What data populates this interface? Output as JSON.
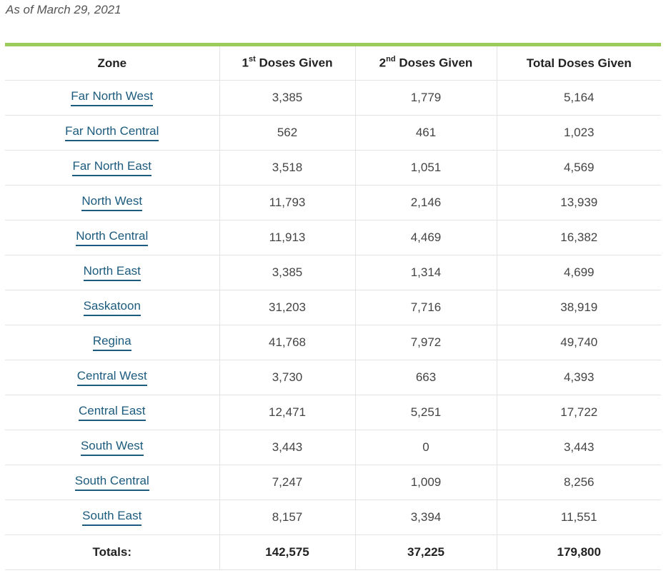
{
  "as_of": "As of March 29, 2021",
  "table": {
    "headers": {
      "zone": "Zone",
      "first_prefix": "1",
      "first_sup": "st",
      "first_suffix": " Doses Given",
      "second_prefix": "2",
      "second_sup": "nd",
      "second_suffix": " Doses Given",
      "total": "Total Doses Given"
    },
    "rows": [
      {
        "zone": "Far North West",
        "first": "3,385",
        "second": "1,779",
        "total": "5,164"
      },
      {
        "zone": "Far North Central",
        "first": "562",
        "second": "461",
        "total": "1,023"
      },
      {
        "zone": "Far North East",
        "first": "3,518",
        "second": "1,051",
        "total": "4,569"
      },
      {
        "zone": "North West",
        "first": "11,793",
        "second": "2,146",
        "total": "13,939"
      },
      {
        "zone": "North Central",
        "first": "11,913",
        "second": "4,469",
        "total": "16,382"
      },
      {
        "zone": "North East",
        "first": "3,385",
        "second": "1,314",
        "total": "4,699"
      },
      {
        "zone": "Saskatoon",
        "first": "31,203",
        "second": "7,716",
        "total": "38,919"
      },
      {
        "zone": "Regina",
        "first": "41,768",
        "second": "7,972",
        "total": "49,740"
      },
      {
        "zone": "Central West",
        "first": "3,730",
        "second": "663",
        "total": "4,393"
      },
      {
        "zone": "Central East",
        "first": "12,471",
        "second": "5,251",
        "total": "17,722"
      },
      {
        "zone": "South West",
        "first": "3,443",
        "second": "0",
        "total": "3,443"
      },
      {
        "zone": "South Central",
        "first": "7,247",
        "second": "1,009",
        "total": "8,256"
      },
      {
        "zone": "South East",
        "first": "8,157",
        "second": "3,394",
        "total": "11,551"
      }
    ],
    "totals": {
      "label": "Totals:",
      "first": "142,575",
      "second": "37,225",
      "total": "179,800"
    }
  },
  "colors": {
    "accent_bar": "#9bcc5a",
    "link": "#1c5b7d"
  }
}
